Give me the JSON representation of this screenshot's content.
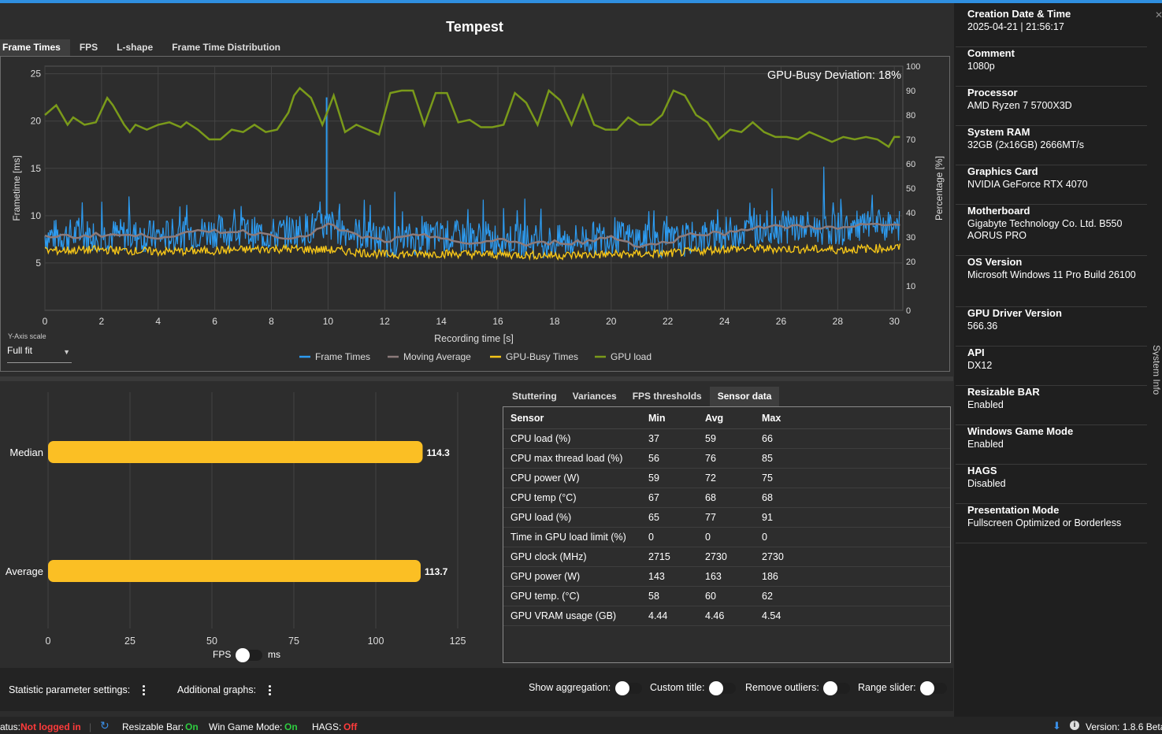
{
  "title": "Tempest",
  "tabs": [
    "Frame Times",
    "FPS",
    "L-shape",
    "Frame Time Distribution"
  ],
  "active_tab": "Frame Times",
  "chart_data": [
    {
      "type": "line",
      "annotation": "GPU-Busy Deviation: 18%",
      "xlabel": "Recording time [s]",
      "ylabel": "Frametime [ms]",
      "y2label": "Percentage [%]",
      "xlim": [
        0,
        30.3
      ],
      "ylim": [
        0,
        25.8
      ],
      "y2lim": [
        0,
        100
      ],
      "xticks": [
        0,
        2,
        4,
        6,
        8,
        10,
        12,
        14,
        16,
        18,
        20,
        22,
        24,
        26,
        28,
        30
      ],
      "yticks": [
        5,
        10,
        15,
        20,
        25
      ],
      "y2ticks": [
        0,
        10,
        20,
        30,
        40,
        50,
        60,
        70,
        80,
        90,
        100
      ],
      "legend": [
        "Frame Times",
        "Moving Average",
        "GPU-Busy Times",
        "GPU load"
      ],
      "legend_position": "bottom",
      "grid": true,
      "colors": {
        "Frame Times": "#2d9bf0",
        "Moving Average": "#8c7a7a",
        "GPU-Busy Times": "#f5c518",
        "GPU load": "#7a9a1a"
      },
      "series": [
        {
          "name": "GPU load",
          "axis": "right",
          "x": [
            0,
            0.4,
            0.8,
            1.0,
            1.4,
            1.8,
            2.0,
            2.2,
            2.4,
            2.8,
            3.0,
            3.2,
            3.6,
            4.0,
            4.4,
            4.8,
            5.0,
            5.4,
            5.8,
            6.2,
            6.6,
            7.0,
            7.4,
            7.8,
            8.2,
            8.6,
            8.8,
            9.0,
            9.4,
            9.8,
            10.2,
            10.6,
            11.0,
            11.4,
            11.8,
            12.2,
            12.6,
            13.0,
            13.4,
            13.8,
            14.2,
            14.6,
            15.0,
            15.4,
            15.8,
            16.2,
            16.6,
            17.0,
            17.4,
            17.8,
            18.2,
            18.6,
            19.0,
            19.4,
            19.8,
            20.2,
            20.6,
            21.0,
            21.4,
            21.8,
            22.2,
            22.6,
            23.0,
            23.4,
            23.8,
            24.2,
            24.6,
            25.0,
            25.4,
            25.8,
            26.2,
            26.6,
            27.0,
            27.4,
            27.8,
            28.2,
            28.6,
            29.0,
            29.4,
            29.8,
            30.0,
            30.2
          ],
          "y": [
            80,
            84,
            76,
            79,
            76,
            77,
            82,
            87,
            84,
            76,
            73,
            76,
            74,
            76,
            77,
            75,
            77,
            74,
            70,
            70,
            74,
            73,
            76,
            73,
            74,
            81,
            88,
            91,
            87,
            76,
            88,
            73,
            76,
            74,
            72,
            89,
            90,
            90,
            76,
            89,
            89,
            77,
            78,
            75,
            75,
            76,
            89,
            85,
            76,
            90,
            86,
            76,
            88,
            76,
            74,
            74,
            79,
            76,
            76,
            80,
            90,
            88,
            80,
            77,
            70,
            74,
            73,
            77,
            73,
            71,
            71,
            70,
            73,
            71,
            69,
            71,
            70,
            71,
            70,
            67,
            71,
            71
          ]
        },
        {
          "name": "Moving Average",
          "axis": "left",
          "x": [
            0,
            1,
            2,
            3,
            4,
            5,
            6,
            7,
            8,
            9,
            10,
            11,
            12,
            13,
            14,
            15,
            16,
            17,
            18,
            19,
            20,
            21,
            22,
            23,
            24,
            25,
            26,
            27,
            28,
            29,
            30
          ],
          "y": [
            7.9,
            7.8,
            8.0,
            7.9,
            7.8,
            8.1,
            8.4,
            8.3,
            8.0,
            7.6,
            9.0,
            7.9,
            7.3,
            7.8,
            7.8,
            6.8,
            7.6,
            6.9,
            7.2,
            7.2,
            7.8,
            6.8,
            7.2,
            8.2,
            8.1,
            8.8,
            8.8,
            8.9,
            8.6,
            9.0,
            9.0
          ]
        },
        {
          "name": "GPU-Busy Times",
          "axis": "left",
          "x": [
            0,
            2,
            4,
            6,
            8,
            10,
            12,
            14,
            16,
            18,
            20,
            22,
            24,
            26,
            28,
            30
          ],
          "y": [
            6.3,
            6.4,
            6.2,
            6.3,
            6.5,
            6.4,
            5.9,
            6.0,
            5.9,
            5.8,
            5.9,
            6.0,
            6.5,
            6.5,
            6.4,
            6.6
          ]
        },
        {
          "name": "Frame Times",
          "axis": "left",
          "x": [
            0,
            2,
            4,
            6,
            8,
            10,
            12,
            14,
            16,
            18,
            20,
            22,
            24,
            26,
            28,
            30
          ],
          "y": [
            7.9,
            8.0,
            7.8,
            8.4,
            8.0,
            9.0,
            7.3,
            7.8,
            7.6,
            7.2,
            7.8,
            7.2,
            8.1,
            8.8,
            8.6,
            9.0
          ],
          "min": 4.2,
          "max": 22.5
        }
      ]
    },
    {
      "type": "bar",
      "orientation": "horizontal",
      "categories": [
        "Median",
        "Average"
      ],
      "values": [
        114.3,
        113.7
      ],
      "value_labels": [
        "114.3",
        "113.7"
      ],
      "xlim": [
        0,
        125
      ],
      "xticks": [
        0,
        25,
        50,
        75,
        100,
        125
      ],
      "grid": true,
      "color": "#fbbf24"
    }
  ],
  "yaxis_scale": {
    "label": "Y-Axis scale",
    "value": "Full fit"
  },
  "fps_toggle": {
    "left": "FPS",
    "right": "ms"
  },
  "sensor_tabs": [
    "Stuttering",
    "Variances",
    "FPS thresholds",
    "Sensor data"
  ],
  "active_sensor_tab": "Sensor data",
  "sensor_table": {
    "headers": [
      "Sensor",
      "Min",
      "Avg",
      "Max"
    ],
    "rows": [
      [
        "CPU load (%)",
        "37",
        "59",
        "66"
      ],
      [
        "CPU max thread load (%)",
        "56",
        "76",
        "85"
      ],
      [
        "CPU power (W)",
        "59",
        "72",
        "75"
      ],
      [
        "CPU temp (°C)",
        "67",
        "68",
        "68"
      ],
      [
        "GPU load (%)",
        "65",
        "77",
        "91"
      ],
      [
        "Time in GPU load limit (%)",
        "0",
        "0",
        "0"
      ],
      [
        "GPU clock (MHz)",
        "2715",
        "2730",
        "2730"
      ],
      [
        "GPU power (W)",
        "143",
        "163",
        "186"
      ],
      [
        "GPU temp. (°C)",
        "58",
        "60",
        "62"
      ],
      [
        "GPU VRAM usage (GB)",
        "4.44",
        "4.46",
        "4.54"
      ]
    ]
  },
  "bottom": {
    "stat_settings": "Statistic parameter settings:",
    "additional_graphs": "Additional graphs:",
    "show_aggregation": "Show aggregation:",
    "custom_title": "Custom title:",
    "remove_outliers": "Remove outliers:",
    "range_slider": "Range slider:"
  },
  "status": {
    "status_label": "atus:",
    "status_value": "Not logged in",
    "rebar_label": "Resizable Bar:",
    "rebar_value": "On",
    "gamemode_label": "Win Game Mode:",
    "gamemode_value": "On",
    "hags_label": "HAGS:",
    "hags_value": "Off",
    "version": "Version: 1.8.6 Beta"
  },
  "system_info": [
    {
      "label": "Creation Date & Time",
      "value": "2025-04-21  |  21:56:17"
    },
    {
      "label": "Comment",
      "value": "1080p"
    },
    {
      "label": "Processor",
      "value": "AMD Ryzen 7 5700X3D"
    },
    {
      "label": "System RAM",
      "value": "32GB (2x16GB) 2666MT/s"
    },
    {
      "label": "Graphics Card",
      "value": "NVIDIA GeForce RTX 4070"
    },
    {
      "label": "Motherboard",
      "value": "Gigabyte Technology Co. Ltd. B550 AORUS PRO"
    },
    {
      "label": "OS Version",
      "value": "Microsoft Windows 11 Pro Build 26100"
    },
    {
      "label": "GPU Driver Version",
      "value": "566.36"
    },
    {
      "label": "API",
      "value": "DX12"
    },
    {
      "label": "Resizable BAR",
      "value": "Enabled"
    },
    {
      "label": "Windows Game Mode",
      "value": "Enabled"
    },
    {
      "label": "HAGS",
      "value": "Disabled"
    },
    {
      "label": "Presentation Mode",
      "value": "Fullscreen Optimized or Borderless"
    }
  ],
  "system_info_tab": "System Info"
}
